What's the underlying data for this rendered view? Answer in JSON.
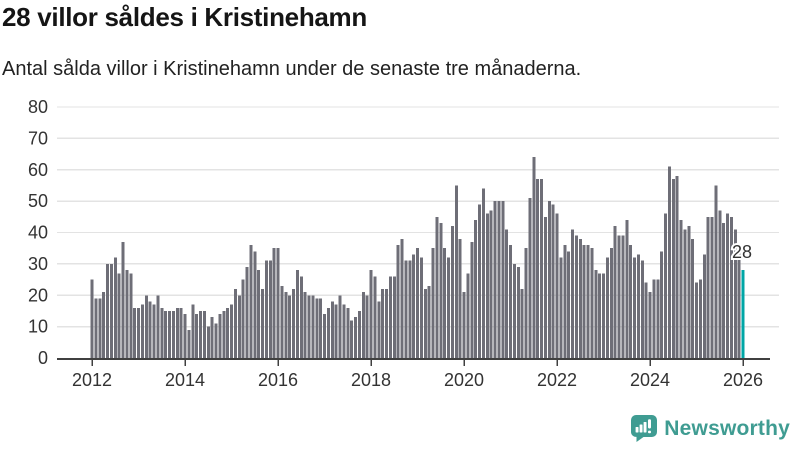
{
  "header": {
    "title": "28 villor såldes i Kristinehamn",
    "subtitle": "Antal sålda villor i Kristinehamn under de senaste tre månaderna."
  },
  "chart_data": {
    "type": "bar",
    "title": "28 villor såldes i Kristinehamn",
    "subtitle": "Antal sålda villor i Kristinehamn under de senaste tre månaderna.",
    "x_start": "2012-01",
    "x_freq": "monthly",
    "x_tick_labels": [
      "2012",
      "2014",
      "2016",
      "2018",
      "2020",
      "2022",
      "2024",
      "2026"
    ],
    "y_ticks": [
      "0",
      "10",
      "20",
      "30",
      "40",
      "50",
      "60",
      "70",
      "80"
    ],
    "ylim": [
      0,
      80
    ],
    "grid": true,
    "legend": false,
    "bar_color": "#6e6e77",
    "highlight_color": "#00a6a6",
    "values": [
      25,
      19,
      19,
      21,
      30,
      30,
      32,
      27,
      37,
      28,
      27,
      16,
      16,
      17,
      20,
      18,
      17,
      20,
      16,
      15,
      15,
      15,
      16,
      16,
      14,
      9,
      17,
      14,
      15,
      15,
      10,
      13,
      11,
      14,
      15,
      16,
      17,
      22,
      20,
      25,
      29,
      36,
      34,
      28,
      22,
      31,
      31,
      35,
      35,
      23,
      21,
      20,
      22,
      28,
      26,
      21,
      20,
      20,
      19,
      19,
      14,
      16,
      18,
      17,
      20,
      17,
      16,
      12,
      13,
      15,
      21,
      20,
      28,
      26,
      18,
      22,
      22,
      26,
      26,
      36,
      38,
      31,
      31,
      33,
      35,
      32,
      22,
      23,
      35,
      45,
      43,
      35,
      32,
      42,
      55,
      38,
      21,
      27,
      37,
      44,
      49,
      54,
      46,
      47,
      50,
      50,
      50,
      41,
      36,
      30,
      29,
      22,
      35,
      51,
      64,
      57,
      57,
      45,
      50,
      49,
      46,
      32,
      36,
      34,
      41,
      39,
      38,
      36,
      36,
      35,
      28,
      27,
      27,
      32,
      35,
      42,
      39,
      39,
      44,
      36,
      32,
      33,
      31,
      24,
      21,
      25,
      25,
      34,
      46,
      61,
      57,
      58,
      44,
      41,
      42,
      38,
      24,
      25,
      33,
      45,
      45,
      55,
      47,
      43,
      46,
      45,
      41,
      34,
      28
    ],
    "highlight": {
      "index": 168,
      "value": 28,
      "label": "28"
    }
  },
  "footer": {
    "brand": "Newsworthy",
    "brand_color": "#3f9c92",
    "logo_icon": "bar-chart-speech-bubble-icon"
  },
  "colors": {
    "title_text": "#151515",
    "subtitle_text": "#222222",
    "axis_text": "#333333",
    "axis_line": "#404040",
    "gridline": "#e3e3e3",
    "bar": "#6e6e77",
    "accent": "#00a6a6",
    "brand": "#3f9c92"
  }
}
